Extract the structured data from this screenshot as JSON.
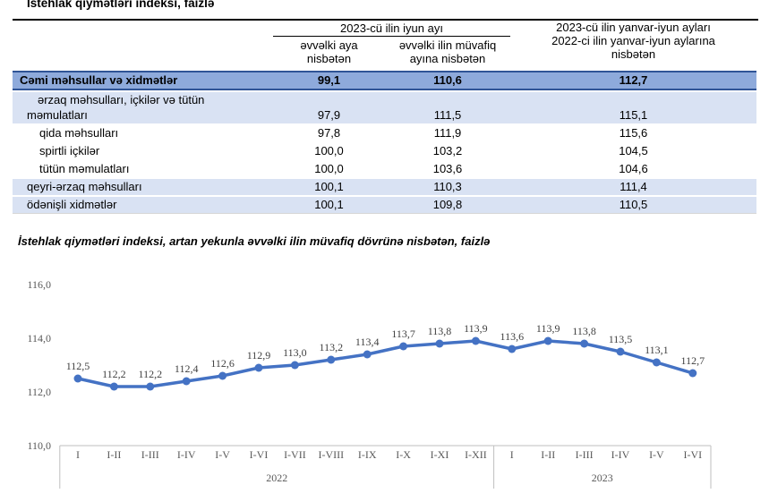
{
  "page": {
    "table_title": "İstehlak qiymətləri indeksi, faizlə",
    "chart_title": "İstehlak qiymətləri indeksi, artan yekunla əvvəlki ilin müvafiq dövrünə nisbətən, faizlə"
  },
  "table": {
    "group_june": "2023-cü ilin iyun ayı",
    "col_prev_month": "əvvəlki aya nisbətən",
    "col_prev_year_month": "əvvəlki ilin müvafiq ayına nisbətən",
    "group_jan_june_line1": "2023-cü ilin yanvar-iyun ayları",
    "group_jan_june_line2": "2022-ci ilin yanvar-iyun aylarına nisbətən",
    "rows": [
      {
        "label": "Cəmi məhsullar və xidmətlər",
        "level": 0,
        "style": "total",
        "values": [
          "99,1",
          "110,6",
          "112,7"
        ]
      },
      {
        "label": "ərzaq məhsulları, içkilər və tütün məmulatları",
        "level": 1,
        "style": "group",
        "values": [
          "97,9",
          "111,5",
          "115,1"
        ]
      },
      {
        "label": "qida məhsulları",
        "level": 2,
        "style": "plain",
        "values": [
          "97,8",
          "111,9",
          "115,6"
        ]
      },
      {
        "label": "spirtli içkilər",
        "level": 2,
        "style": "plain",
        "values": [
          "100,0",
          "103,2",
          "104,5"
        ]
      },
      {
        "label": "tütün məmulatları",
        "level": 2,
        "style": "plain",
        "values": [
          "100,0",
          "103,6",
          "104,6"
        ]
      },
      {
        "label": "qeyri-ərzaq məhsulları",
        "level": 1,
        "style": "group",
        "values": [
          "100,1",
          "110,3",
          "111,4"
        ]
      },
      {
        "label": "ödənişli xidmətlər",
        "level": 1,
        "style": "group",
        "values": [
          "100,1",
          "109,8",
          "110,5"
        ]
      }
    ]
  },
  "chart_data": {
    "type": "line",
    "title": "İstehlak qiymətləri indeksi, artan yekunla əvvəlki ilin müvafiq dövrünə nisbətən, faizlə",
    "categories": [
      "I",
      "I-II",
      "I-III",
      "I-IV",
      "I-V",
      "I-VI",
      "I-VII",
      "I-VIII",
      "I-IX",
      "I-X",
      "I-XI",
      "I-XII",
      "I",
      "I-II",
      "I-III",
      "I-IV",
      "I-V",
      "I-VI"
    ],
    "values": [
      112.5,
      112.2,
      112.2,
      112.4,
      112.6,
      112.9,
      113.0,
      113.2,
      113.4,
      113.7,
      113.8,
      113.9,
      113.6,
      113.9,
      113.8,
      113.5,
      113.1,
      112.7
    ],
    "year_groups": [
      {
        "label": "2022",
        "count": 12
      },
      {
        "label": "2023",
        "count": 6
      }
    ],
    "y_ticks": [
      116,
      114,
      112,
      110
    ],
    "ylim": [
      110,
      116
    ],
    "decimal_separator": ",",
    "gridlines": false,
    "legend": "none",
    "line_color": "#4472C4",
    "marker": "circle"
  },
  "colors": {
    "total_row_bg": "#8EAADB",
    "total_row_border": "#2F5496",
    "group_row_bg": "#D9E2F3",
    "chart_line": "#4472C4",
    "axis_text": "#595959",
    "data_label_text": "#404040",
    "axis_frame": "#BFBFBF"
  }
}
